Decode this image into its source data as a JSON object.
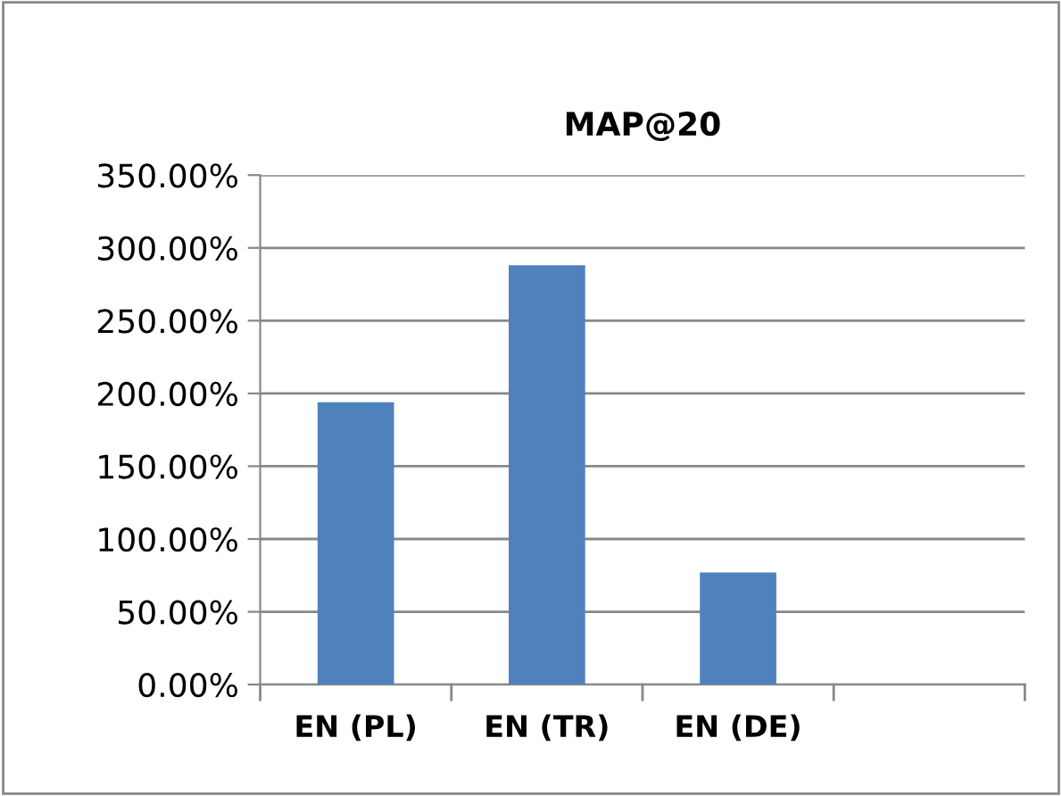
{
  "chart_data": {
    "type": "bar",
    "title": "MAP@20",
    "categories": [
      "EN (PL)",
      "EN (TR)",
      "EN (DE)",
      null
    ],
    "values": [
      194,
      288,
      77,
      null
    ],
    "color": "#4f81bd",
    "ylim": [
      0,
      350
    ],
    "yticks": [
      {
        "value": 0,
        "label": "0.00%"
      },
      {
        "value": 50,
        "label": "50.00%"
      },
      {
        "value": 100,
        "label": "100.00%"
      },
      {
        "value": 150,
        "label": "150.00%"
      },
      {
        "value": 200,
        "label": "200.00%"
      },
      {
        "value": 250,
        "label": "250.00%"
      },
      {
        "value": 300,
        "label": "300.00%"
      },
      {
        "value": 350,
        "label": "350.00%"
      }
    ],
    "grid": "y",
    "legend": false
  }
}
